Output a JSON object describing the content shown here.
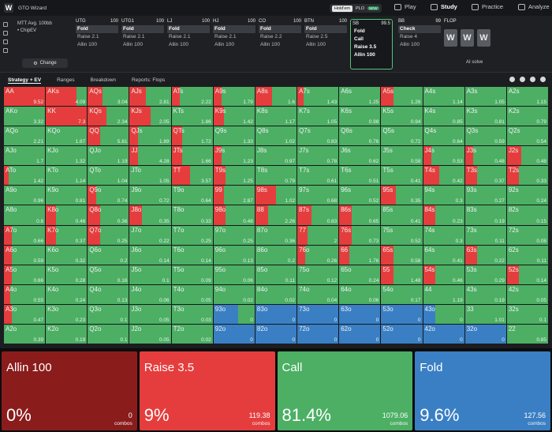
{
  "header": {
    "app_name": "GTO Wizard",
    "toggle": {
      "holdem": "Hold'em",
      "plo": "PLO",
      "new_badge": "NEW"
    },
    "nav": [
      {
        "label": "Play"
      },
      {
        "label": "Study"
      },
      {
        "label": "Practice"
      },
      {
        "label": "Analyze"
      }
    ]
  },
  "game": {
    "line1": "MTT  Avg. 100bb",
    "line2": "• ChipEV",
    "change_label": "Change"
  },
  "positions": [
    {
      "name": "UTG",
      "stack": "100",
      "actions": [
        "Fold",
        "Raise 2.1",
        "Allin 100"
      ],
      "selected": 0
    },
    {
      "name": "UTG1",
      "stack": "100",
      "actions": [
        "Fold",
        "Raise 2.1",
        "Allin 100"
      ],
      "selected": 0
    },
    {
      "name": "LJ",
      "stack": "100",
      "actions": [
        "Fold",
        "Raise 2.1",
        "Allin 100"
      ],
      "selected": 0
    },
    {
      "name": "HJ",
      "stack": "100",
      "actions": [
        "Fold",
        "Raise 2.1",
        "Allin 100"
      ],
      "selected": 0
    },
    {
      "name": "CO",
      "stack": "100",
      "actions": [
        "Fold",
        "Raise 2.2",
        "Allin 100"
      ],
      "selected": 0
    },
    {
      "name": "BTN",
      "stack": "100",
      "actions": [
        "Fold",
        "Raise 2.5",
        "Allin 100"
      ],
      "selected": 0
    },
    {
      "name": "SB",
      "stack": "99.5",
      "actions": [
        "Fold",
        "Call",
        "Raise 3.5",
        "Allin 100"
      ],
      "selected": -1,
      "current": true
    },
    {
      "name": "BB",
      "stack": "99",
      "actions": [
        "Check",
        "Raise 4",
        "Allin 100"
      ],
      "selected": 0
    }
  ],
  "flop": {
    "label": "FLOP",
    "cards": [
      "W",
      "W",
      "W"
    ],
    "ai_label": "AI solve"
  },
  "tabs": [
    "Strategy + EV",
    "Ranges",
    "Breakdown",
    "Reports: Flops"
  ],
  "colors": {
    "raise": "#e53d3d",
    "call": "#4caf64",
    "fold": "#3a7fc4",
    "allin": "#8b1c1c"
  },
  "grid": {
    "cells": [
      [
        "AA",
        "9.52",
        1,
        0
      ],
      [
        "AKs",
        "4.09",
        0.75,
        0
      ],
      [
        "AQs",
        "3.04",
        0.35,
        0
      ],
      [
        "AJs",
        "2.81",
        0.4,
        0
      ],
      [
        "ATs",
        "2.22",
        0.2,
        0
      ],
      [
        "A9s",
        "1.79",
        0.2,
        0
      ],
      [
        "A8s",
        "1.6",
        0.4,
        0
      ],
      [
        "A7s",
        "1.43",
        0.15,
        0
      ],
      [
        "A6s",
        "1.25",
        0,
        0
      ],
      [
        "A5s",
        "1.26",
        0.3,
        0
      ],
      [
        "A4s",
        "1.14",
        0,
        0
      ],
      [
        "A3s",
        "1.05",
        0,
        0
      ],
      [
        "A2s",
        "1.15",
        0,
        0
      ],
      [
        "AKo",
        "3.32",
        0,
        0
      ],
      [
        "KK",
        "7.3",
        1,
        0
      ],
      [
        "KQs",
        "2.34",
        0.45,
        0
      ],
      [
        "KJs",
        "2.05",
        0.5,
        0
      ],
      [
        "KTs",
        "1.86",
        0,
        0
      ],
      [
        "K9s",
        "1.42",
        0.25,
        0
      ],
      [
        "K8s",
        "1.17",
        0,
        0
      ],
      [
        "K7s",
        "1.05",
        0,
        0
      ],
      [
        "K6s",
        "0.98",
        0,
        0
      ],
      [
        "K5s",
        "0.94",
        0,
        0
      ],
      [
        "K4s",
        "0.85",
        0,
        0
      ],
      [
        "K3s",
        "0.81",
        0,
        0
      ],
      [
        "K2s",
        "0.79",
        0,
        0
      ],
      [
        "AQo",
        "2.21",
        0,
        0
      ],
      [
        "KQo",
        "1.87",
        0,
        0
      ],
      [
        "QQ",
        "5.81",
        0.3,
        0
      ],
      [
        "QJs",
        "1.89",
        0.2,
        0
      ],
      [
        "QTs",
        "1.72",
        0.25,
        0
      ],
      [
        "Q9s",
        "1.33",
        0,
        0
      ],
      [
        "Q8s",
        "1.02",
        0,
        0
      ],
      [
        "Q7s",
        "0.83",
        0,
        0
      ],
      [
        "Q6s",
        "0.76",
        0,
        0
      ],
      [
        "Q5s",
        "0.72",
        0,
        0
      ],
      [
        "Q4s",
        "0.64",
        0,
        0
      ],
      [
        "Q3s",
        "0.59",
        0,
        0
      ],
      [
        "Q2s",
        "0.54",
        0,
        0
      ],
      [
        "AJo",
        "1.7",
        0,
        0
      ],
      [
        "KJo",
        "1.32",
        0,
        0
      ],
      [
        "QJo",
        "1.19",
        0,
        0
      ],
      [
        "JJ",
        "4.28",
        0.2,
        0
      ],
      [
        "JTs",
        "1.66",
        0.25,
        0
      ],
      [
        "J9s",
        "1.23",
        0.2,
        0
      ],
      [
        "J8s",
        "0.97",
        0,
        0
      ],
      [
        "J7s",
        "0.78",
        0,
        0
      ],
      [
        "J6s",
        "0.62",
        0,
        0
      ],
      [
        "J5s",
        "0.58",
        0,
        0
      ],
      [
        "J4s",
        "0.53",
        0.2,
        0
      ],
      [
        "J3s",
        "0.48",
        0.2,
        0
      ],
      [
        "J2s",
        "0.48",
        0.35,
        0
      ],
      [
        "ATo",
        "1.42",
        0.1,
        0
      ],
      [
        "KTo",
        "1.14",
        0,
        0
      ],
      [
        "QTo",
        "1.04",
        0,
        0
      ],
      [
        "JTo",
        "1.05",
        0,
        0
      ],
      [
        "TT",
        "3.57",
        0.45,
        0
      ],
      [
        "T9s",
        "1.25",
        0.3,
        0
      ],
      [
        "T8s",
        "0.79",
        0,
        0
      ],
      [
        "T7s",
        "0.61",
        0,
        0
      ],
      [
        "T6s",
        "0.51",
        0,
        0
      ],
      [
        "T5s",
        "0.41",
        0,
        0
      ],
      [
        "T4s",
        "0.42",
        0.4,
        0
      ],
      [
        "T3s",
        "0.37",
        0.3,
        0
      ],
      [
        "T2s",
        "0.33",
        0.3,
        0
      ],
      [
        "A9o",
        "0.96",
        0,
        0
      ],
      [
        "K9o",
        "0.81",
        0,
        0
      ],
      [
        "Q9o",
        "0.74",
        0.2,
        0
      ],
      [
        "J9o",
        "0.72",
        0,
        0
      ],
      [
        "T9o",
        "0.64",
        0,
        0
      ],
      [
        "99",
        "2.87",
        0.25,
        0
      ],
      [
        "98s",
        "1.02",
        0.5,
        0
      ],
      [
        "97s",
        "0.68",
        0,
        0
      ],
      [
        "96s",
        "0.52",
        0,
        0
      ],
      [
        "95s",
        "0.35",
        0.35,
        0
      ],
      [
        "94s",
        "0.3",
        0,
        0
      ],
      [
        "93s",
        "0.27",
        0,
        0
      ],
      [
        "92s",
        "0.24",
        0,
        0
      ],
      [
        "A8o",
        "0.8",
        0,
        0
      ],
      [
        "K8o",
        "0.46",
        0.25,
        0
      ],
      [
        "Q8o",
        "0.36",
        0.3,
        0
      ],
      [
        "J8o",
        "0.35",
        0.3,
        0
      ],
      [
        "T8o",
        "0.33",
        0,
        0
      ],
      [
        "98o",
        "0.48",
        0.3,
        0
      ],
      [
        "88",
        "2.26",
        0.3,
        0
      ],
      [
        "87s",
        "0.83",
        0.35,
        0
      ],
      [
        "86s",
        "0.65",
        0.3,
        0
      ],
      [
        "85s",
        "0.41",
        0,
        0
      ],
      [
        "84s",
        "0.23",
        0.3,
        0
      ],
      [
        "83s",
        "0.19",
        0,
        0
      ],
      [
        "82s",
        "0.15",
        0,
        0
      ],
      [
        "A7o",
        "0.66",
        0.2,
        0
      ],
      [
        "K7o",
        "0.37",
        0.25,
        0
      ],
      [
        "Q7o",
        "0.25",
        0.3,
        0
      ],
      [
        "J7o",
        "0.22",
        0,
        0
      ],
      [
        "T7o",
        "0.25",
        0,
        0
      ],
      [
        "97o",
        "0.25",
        0,
        0
      ],
      [
        "87o",
        "0.36",
        0,
        0
      ],
      [
        "77",
        "2",
        0.25,
        0
      ],
      [
        "76s",
        "0.73",
        0.3,
        0
      ],
      [
        "75s",
        "0.52",
        0,
        0
      ],
      [
        "74s",
        "0.3",
        0,
        0
      ],
      [
        "73s",
        "0.11",
        0,
        0
      ],
      [
        "72s",
        "0.08",
        0,
        0
      ],
      [
        "A6o",
        "0.59",
        0.2,
        0
      ],
      [
        "K6o",
        "0.32",
        0,
        0
      ],
      [
        "Q6o",
        "0.2",
        0,
        0
      ],
      [
        "J6o",
        "0.14",
        0,
        0
      ],
      [
        "T6o",
        "0.14",
        0,
        0
      ],
      [
        "96o",
        "0.13",
        0,
        0
      ],
      [
        "86o",
        "0.2",
        0,
        0
      ],
      [
        "76o",
        "0.26",
        0.2,
        0
      ],
      [
        "66",
        "1.76",
        0.25,
        0
      ],
      [
        "65s",
        "0.58",
        0.3,
        0
      ],
      [
        "64s",
        "0.41",
        0,
        0
      ],
      [
        "63s",
        "0.22",
        0.3,
        0
      ],
      [
        "62s",
        "0.11",
        0,
        0
      ],
      [
        "A5o",
        "0.66",
        0.2,
        0
      ],
      [
        "K5o",
        "0.28",
        0,
        0
      ],
      [
        "Q5o",
        "0.16",
        0,
        0
      ],
      [
        "J5o",
        "0.1",
        0,
        0
      ],
      [
        "T5o",
        "0.09",
        0,
        0
      ],
      [
        "95o",
        "0.06",
        0,
        0
      ],
      [
        "85o",
        "0.11",
        0,
        0
      ],
      [
        "75o",
        "0.12",
        0,
        0
      ],
      [
        "65o",
        "0.24",
        0,
        0
      ],
      [
        "55",
        "1.48",
        0.3,
        0
      ],
      [
        "54s",
        "0.46",
        0.3,
        0
      ],
      [
        "53s",
        "0.29",
        0,
        0
      ],
      [
        "52s",
        "0.14",
        0.3,
        0
      ],
      [
        "A4o",
        "0.55",
        0.15,
        0
      ],
      [
        "K4o",
        "0.24",
        0,
        0
      ],
      [
        "Q4o",
        "0.13",
        0,
        0
      ],
      [
        "J4o",
        "0.06",
        0,
        0
      ],
      [
        "T4o",
        "0.05",
        0,
        0
      ],
      [
        "94o",
        "0.02",
        0,
        0
      ],
      [
        "84o",
        "0.02",
        0,
        0
      ],
      [
        "74o",
        "0.04",
        0,
        0
      ],
      [
        "64o",
        "0.06",
        0,
        0
      ],
      [
        "54o",
        "0.17",
        0,
        0
      ],
      [
        "44",
        "1.19",
        0,
        0
      ],
      [
        "43s",
        "0.19",
        0,
        0
      ],
      [
        "42s",
        "0.05",
        0,
        0
      ],
      [
        "A3o",
        "0.47",
        0.2,
        0
      ],
      [
        "K3o",
        "0.23",
        0,
        0
      ],
      [
        "Q3o",
        "0.1",
        0,
        0
      ],
      [
        "J3o",
        "0.05",
        0,
        0
      ],
      [
        "T3o",
        "0.03",
        0,
        0
      ],
      [
        "93o",
        "0",
        0,
        0.6
      ],
      [
        "83o",
        "0",
        0,
        1
      ],
      [
        "73o",
        "0",
        0,
        1
      ],
      [
        "63o",
        "0",
        0,
        1
      ],
      [
        "53o",
        "0",
        0,
        1
      ],
      [
        "43o",
        "0",
        0,
        0.3
      ],
      [
        "33",
        "1.01",
        0,
        0
      ],
      [
        "32s",
        "0.1",
        0,
        0
      ],
      [
        "A2o",
        "0.39",
        0,
        0
      ],
      [
        "K2o",
        "0.19",
        0,
        0
      ],
      [
        "Q2o",
        "0.1",
        0,
        0
      ],
      [
        "J2o",
        "0.05",
        0,
        0
      ],
      [
        "T2o",
        "0.02",
        0,
        0
      ],
      [
        "92o",
        "0",
        0,
        1
      ],
      [
        "82o",
        "0",
        0,
        1
      ],
      [
        "72o",
        "0",
        0,
        1
      ],
      [
        "62o",
        "0",
        0,
        1
      ],
      [
        "52o",
        "0",
        0,
        1
      ],
      [
        "42o",
        "0",
        0,
        1
      ],
      [
        "32o",
        "0",
        0,
        1
      ],
      [
        "22",
        "0.85",
        0,
        0
      ]
    ]
  },
  "summary": [
    {
      "name": "Allin 100",
      "pct": "0%",
      "combos": "0",
      "unit": "combos",
      "color": "#8b1c1c"
    },
    {
      "name": "Raise 3.5",
      "pct": "9%",
      "combos": "119.38",
      "unit": "combos",
      "color": "#e53d3d"
    },
    {
      "name": "Call",
      "pct": "81.4%",
      "combos": "1079.06",
      "unit": "combos",
      "color": "#4caf64"
    },
    {
      "name": "Fold",
      "pct": "9.6%",
      "combos": "127.56",
      "unit": "combos",
      "color": "#3a7fc4"
    }
  ]
}
